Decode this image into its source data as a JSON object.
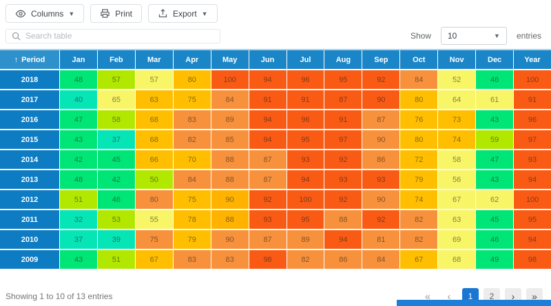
{
  "toolbar": {
    "columns_label": "Columns",
    "print_label": "Print",
    "export_label": "Export"
  },
  "search": {
    "placeholder": "Search table"
  },
  "page_size": {
    "show_label": "Show",
    "value": "10",
    "entries_label": "entries"
  },
  "colors": {
    "header_bg": "#1a86c8",
    "period_header_bg": "#2e91cc",
    "period_cell_bg": "#0e7cc3",
    "accent_active_page": "#1976d2",
    "scrollbar_thumb": "#1e7fd9",
    "heat_teal": "#06e5b5",
    "heat_green": "#00e676",
    "heat_chartreuse": "#b2e800",
    "heat_pale_yellow": "#f8f566",
    "heat_amber": "#ffbf00",
    "heat_gold": "#ffb300",
    "heat_orange": "#f8913b",
    "heat_deep_orange": "#f95b15"
  },
  "table": {
    "period_header": "Period",
    "sort_icon": "↑",
    "month_headers": [
      "Jan",
      "Feb",
      "Mar",
      "Apr",
      "May",
      "Jun",
      "Jul",
      "Aug",
      "Sep",
      "Oct",
      "Nov",
      "Dec",
      "Year"
    ],
    "rows": [
      {
        "period": "2018",
        "values": [
          48,
          57,
          57,
          80,
          100,
          94,
          96,
          95,
          92,
          84,
          52,
          46,
          100
        ],
        "colors": [
          "#00e676",
          "#b2e800",
          "#f8f566",
          "#ffbf00",
          "#f95b15",
          "#f95b15",
          "#f95b15",
          "#f95b15",
          "#f95b15",
          "#f8913b",
          "#f8f566",
          "#00e676",
          "#f95b15"
        ]
      },
      {
        "period": "2017",
        "values": [
          40,
          65,
          63,
          75,
          84,
          91,
          91,
          87,
          90,
          80,
          64,
          61,
          91
        ],
        "colors": [
          "#06e5b5",
          "#f8f566",
          "#ffbf00",
          "#ffbf00",
          "#f8913b",
          "#f95b15",
          "#f95b15",
          "#f95b15",
          "#f95b15",
          "#ffbf00",
          "#f8f566",
          "#f8f566",
          "#f95b15"
        ]
      },
      {
        "period": "2016",
        "values": [
          47,
          58,
          68,
          83,
          89,
          94,
          96,
          91,
          87,
          76,
          73,
          43,
          96
        ],
        "colors": [
          "#00e676",
          "#b2e800",
          "#ffbf00",
          "#f8913b",
          "#f8913b",
          "#f95b15",
          "#f95b15",
          "#f95b15",
          "#f8913b",
          "#ffbf00",
          "#ffbf00",
          "#00e676",
          "#f95b15"
        ]
      },
      {
        "period": "2015",
        "values": [
          43,
          37,
          68,
          82,
          85,
          94,
          95,
          97,
          90,
          80,
          74,
          59,
          97
        ],
        "colors": [
          "#00e676",
          "#06e5b5",
          "#ffbf00",
          "#f8913b",
          "#f8913b",
          "#f95b15",
          "#f95b15",
          "#f95b15",
          "#f8913b",
          "#ffbf00",
          "#ffbf00",
          "#b2e800",
          "#f95b15"
        ]
      },
      {
        "period": "2014",
        "values": [
          42,
          45,
          66,
          70,
          88,
          87,
          93,
          92,
          86,
          72,
          58,
          47,
          93
        ],
        "colors": [
          "#00e676",
          "#00e676",
          "#ffbf00",
          "#ffbf00",
          "#f8913b",
          "#f8913b",
          "#f95b15",
          "#f95b15",
          "#f8913b",
          "#ffbf00",
          "#f8f566",
          "#00e676",
          "#f95b15"
        ]
      },
      {
        "period": "2013",
        "values": [
          48,
          42,
          50,
          84,
          88,
          87,
          94,
          93,
          93,
          79,
          56,
          43,
          94
        ],
        "colors": [
          "#00e676",
          "#00e676",
          "#b2e800",
          "#f8913b",
          "#f8913b",
          "#f8913b",
          "#f95b15",
          "#f95b15",
          "#f95b15",
          "#ffbf00",
          "#f8f566",
          "#00e676",
          "#f95b15"
        ]
      },
      {
        "period": "2012",
        "values": [
          51,
          46,
          80,
          75,
          90,
          92,
          100,
          92,
          90,
          74,
          67,
          62,
          100
        ],
        "colors": [
          "#b2e800",
          "#00e676",
          "#f8913b",
          "#ffbf00",
          "#ffb300",
          "#f95b15",
          "#f95b15",
          "#f95b15",
          "#f8913b",
          "#ffbf00",
          "#f8f566",
          "#f8f566",
          "#f95b15"
        ]
      },
      {
        "period": "2011",
        "values": [
          32,
          53,
          55,
          78,
          88,
          93,
          95,
          88,
          92,
          82,
          63,
          45,
          95
        ],
        "colors": [
          "#06e5b5",
          "#b2e800",
          "#f8f566",
          "#ffbf00",
          "#ffb300",
          "#f95b15",
          "#f95b15",
          "#f8913b",
          "#f95b15",
          "#f8913b",
          "#f8f566",
          "#00e676",
          "#f95b15"
        ]
      },
      {
        "period": "2010",
        "values": [
          37,
          39,
          75,
          79,
          90,
          87,
          89,
          94,
          81,
          82,
          69,
          46,
          94
        ],
        "colors": [
          "#06e5b5",
          "#06e5b5",
          "#f8913b",
          "#ffbf00",
          "#f8913b",
          "#f8913b",
          "#f8913b",
          "#f95b15",
          "#f8913b",
          "#f8913b",
          "#f8f566",
          "#00e676",
          "#f95b15"
        ]
      },
      {
        "period": "2009",
        "values": [
          43,
          51,
          67,
          83,
          83,
          98,
          82,
          86,
          84,
          67,
          68,
          49,
          98
        ],
        "colors": [
          "#00e676",
          "#b2e800",
          "#ffbf00",
          "#f8913b",
          "#f8913b",
          "#f95b15",
          "#f8913b",
          "#f8913b",
          "#f8913b",
          "#ffbf00",
          "#f8f566",
          "#00e676",
          "#f95b15"
        ]
      }
    ]
  },
  "footer": {
    "status": "Showing 1 to 10 of 13 entries",
    "pagination": {
      "first_label": "«",
      "prev_label": "‹",
      "pages": [
        {
          "label": "1",
          "active": true
        },
        {
          "label": "2",
          "active": false
        }
      ],
      "next_label": "›",
      "last_label": "»"
    }
  }
}
